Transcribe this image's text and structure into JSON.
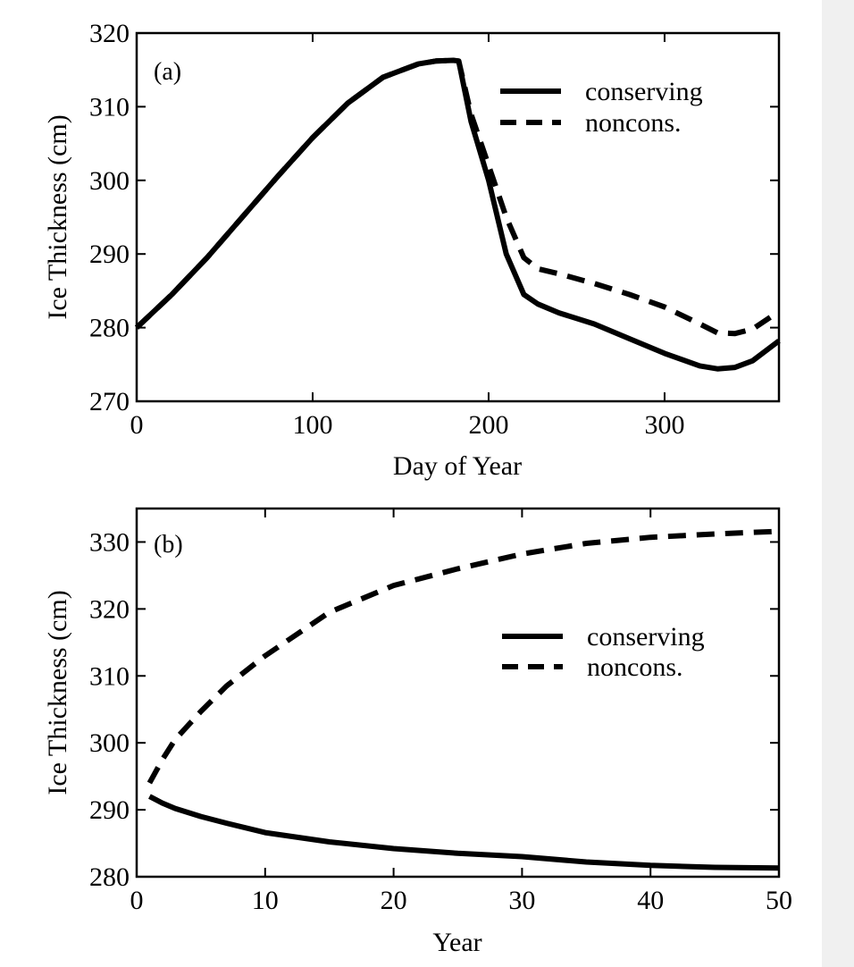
{
  "chart_data": [
    {
      "type": "line",
      "panel_label": "(a)",
      "xlabel": "Day of Year",
      "ylabel": "Ice Thickness (cm)",
      "xlim": [
        0,
        365
      ],
      "ylim": [
        270,
        320
      ],
      "xticks": [
        0,
        100,
        200,
        300
      ],
      "yticks": [
        270,
        280,
        290,
        300,
        310,
        320
      ],
      "grid": false,
      "legend_position": "top-right",
      "series": [
        {
          "name": "conserving",
          "style": "solid",
          "x": [
            0,
            20,
            40,
            60,
            80,
            100,
            120,
            140,
            160,
            170,
            180,
            183,
            190,
            200,
            210,
            220,
            228,
            240,
            260,
            280,
            300,
            320,
            330,
            340,
            350,
            365
          ],
          "y": [
            280,
            284.5,
            289.5,
            295,
            300.5,
            305.8,
            310.5,
            314,
            315.8,
            316.2,
            316.3,
            316.2,
            308,
            300,
            290,
            284.5,
            283.2,
            282,
            280.5,
            278.5,
            276.5,
            274.8,
            274.4,
            274.6,
            275.5,
            278.2
          ]
        },
        {
          "name": "noncons.",
          "style": "dashed",
          "x": [
            0,
            20,
            40,
            60,
            80,
            100,
            120,
            140,
            160,
            170,
            180,
            183,
            190,
            200,
            210,
            220,
            228,
            240,
            260,
            280,
            300,
            320,
            330,
            340,
            350,
            365
          ],
          "y": [
            280,
            284.5,
            289.5,
            295,
            300.5,
            305.8,
            310.5,
            314,
            315.8,
            316.2,
            316.3,
            316.2,
            309,
            302,
            295,
            289.5,
            288,
            287.3,
            286,
            284.5,
            282.8,
            280.5,
            279.3,
            279.2,
            279.8,
            282.2
          ]
        }
      ]
    },
    {
      "type": "line",
      "panel_label": "(b)",
      "xlabel": "Year",
      "ylabel": "Ice Thickness (cm)",
      "xlim": [
        0,
        50
      ],
      "ylim": [
        280,
        335
      ],
      "xticks": [
        0,
        10,
        20,
        30,
        40,
        50
      ],
      "yticks": [
        280,
        290,
        300,
        310,
        320,
        330
      ],
      "grid": false,
      "legend_position": "right",
      "series": [
        {
          "name": "conserving",
          "style": "solid",
          "x": [
            1,
            2,
            3,
            5,
            7,
            10,
            15,
            20,
            25,
            30,
            35,
            40,
            45,
            50
          ],
          "y": [
            292,
            291,
            290.2,
            289,
            288,
            286.6,
            285.2,
            284.2,
            283.5,
            283,
            282.2,
            281.7,
            281.4,
            281.3
          ]
        },
        {
          "name": "noncons.",
          "style": "dashed",
          "x": [
            1,
            2,
            3,
            5,
            7,
            10,
            15,
            20,
            25,
            30,
            35,
            40,
            45,
            50
          ],
          "y": [
            294,
            297.5,
            300.5,
            304.7,
            308.5,
            313,
            319.5,
            323.5,
            326,
            328.2,
            329.8,
            330.7,
            331.2,
            331.6
          ]
        }
      ]
    }
  ]
}
